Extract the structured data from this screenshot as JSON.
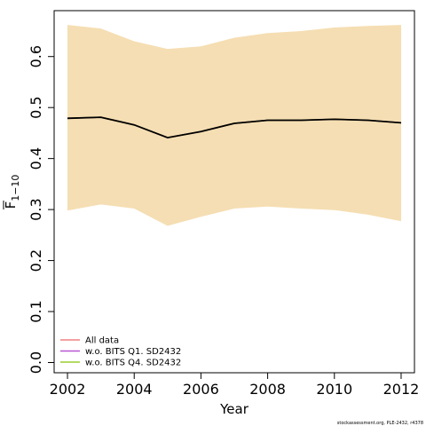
{
  "chart_data": {
    "type": "line",
    "xlabel": "Year",
    "ylabel": "F",
    "ylabel_subscript": "1−10",
    "xlim": [
      2001.6,
      2012.4
    ],
    "ylim": [
      -0.02,
      0.69
    ],
    "x_ticks": [
      "2002",
      "2004",
      "2006",
      "2008",
      "2010",
      "2012"
    ],
    "y_ticks": [
      "0.0",
      "0.1",
      "0.2",
      "0.3",
      "0.4",
      "0.5",
      "0.6"
    ],
    "x": [
      2002,
      2003,
      2004,
      2005,
      2006,
      2007,
      2008,
      2009,
      2010,
      2011,
      2012
    ],
    "band": {
      "color": "#F5DEB3",
      "lower": [
        0.298,
        0.31,
        0.302,
        0.268,
        0.286,
        0.302,
        0.306,
        0.302,
        0.299,
        0.29,
        0.277
      ],
      "upper": [
        0.662,
        0.655,
        0.63,
        0.615,
        0.62,
        0.637,
        0.646,
        0.65,
        0.657,
        0.66,
        0.662
      ]
    },
    "estimate": {
      "color": "#000000",
      "values": [
        0.479,
        0.481,
        0.466,
        0.441,
        0.453,
        0.469,
        0.475,
        0.475,
        0.477,
        0.475,
        0.47
      ]
    },
    "series": [
      {
        "name": "All data",
        "color": "#F08080",
        "values": [
          0.479,
          0.481,
          0.466,
          0.441,
          0.453,
          0.469,
          0.475,
          0.475,
          0.477,
          0.475,
          0.47
        ]
      },
      {
        "name": "w.o. BITS Q1. SD2432",
        "color": "#BA55D3",
        "values": [
          0.479,
          0.481,
          0.466,
          0.441,
          0.453,
          0.469,
          0.475,
          0.475,
          0.477,
          0.475,
          0.47
        ]
      },
      {
        "name": "w.o. BITS Q4. SD2432",
        "color": "#9ACD32",
        "values": [
          0.479,
          0.481,
          0.466,
          0.441,
          0.453,
          0.469,
          0.475,
          0.475,
          0.477,
          0.475,
          0.47
        ]
      }
    ],
    "legend_position": "bottom-left",
    "grid": false
  },
  "footer": "stockassessment.org, PLE-2432, r4378"
}
